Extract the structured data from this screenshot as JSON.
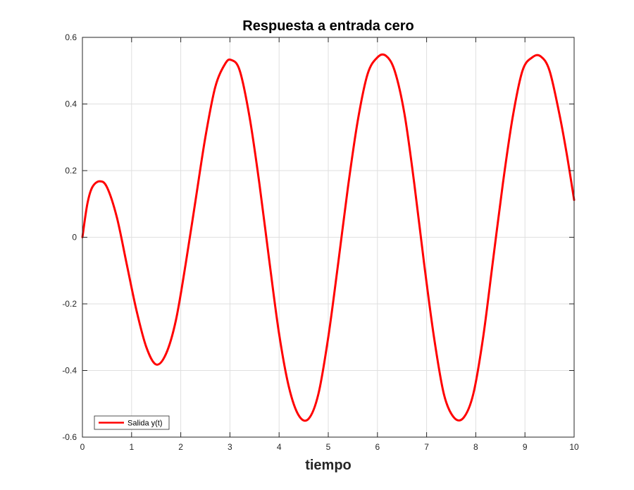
{
  "colors": {
    "series": "#ff0000",
    "axis": "#262626",
    "grid": "#dfdfdf",
    "background": "#ffffff"
  },
  "chart_data": {
    "type": "line",
    "title": "Respuesta a entrada cero",
    "xlabel": "tiempo",
    "ylabel": "",
    "xlim": [
      0,
      10
    ],
    "ylim": [
      -0.6,
      0.6
    ],
    "xticks": [
      0,
      1,
      2,
      3,
      4,
      5,
      6,
      7,
      8,
      9,
      10
    ],
    "xtick_labels": [
      "0",
      "1",
      "2",
      "3",
      "4",
      "5",
      "6",
      "7",
      "8",
      "9",
      "10"
    ],
    "yticks": [
      -0.6,
      -0.4,
      -0.2,
      0,
      0.2,
      0.4,
      0.6
    ],
    "ytick_labels": [
      "-0.6",
      "-0.4",
      "-0.2",
      "0",
      "0.2",
      "0.4",
      "0.6"
    ],
    "grid": true,
    "legend_position": "bottom-left",
    "series": [
      {
        "name": "Salida y(t)",
        "color": "#ff0000",
        "x": [
          0,
          0.1,
          0.2,
          0.35,
          0.5,
          0.7,
          0.9,
          1.1,
          1.3,
          1.5,
          1.7,
          1.9,
          2.1,
          2.3,
          2.5,
          2.7,
          2.9,
          3.03,
          3.2,
          3.4,
          3.6,
          3.8,
          4.0,
          4.2,
          4.4,
          4.6,
          4.8,
          5.0,
          5.2,
          5.4,
          5.6,
          5.8,
          6.0,
          6.17,
          6.35,
          6.55,
          6.75,
          6.95,
          7.15,
          7.35,
          7.55,
          7.75,
          7.95,
          8.15,
          8.35,
          8.55,
          8.75,
          8.95,
          9.15,
          9.32,
          9.5,
          9.7,
          9.85,
          10.0
        ],
        "y": [
          0.0,
          0.1,
          0.15,
          0.168,
          0.15,
          0.06,
          -0.08,
          -0.22,
          -0.33,
          -0.382,
          -0.35,
          -0.25,
          -0.08,
          0.11,
          0.3,
          0.45,
          0.52,
          0.532,
          0.5,
          0.36,
          0.16,
          -0.07,
          -0.29,
          -0.45,
          -0.535,
          -0.545,
          -0.47,
          -0.3,
          -0.08,
          0.15,
          0.35,
          0.49,
          0.54,
          0.545,
          0.5,
          0.37,
          0.16,
          -0.08,
          -0.3,
          -0.47,
          -0.54,
          -0.542,
          -0.47,
          -0.3,
          -0.07,
          0.16,
          0.36,
          0.5,
          0.54,
          0.543,
          0.5,
          0.37,
          0.25,
          0.112
        ]
      }
    ]
  }
}
